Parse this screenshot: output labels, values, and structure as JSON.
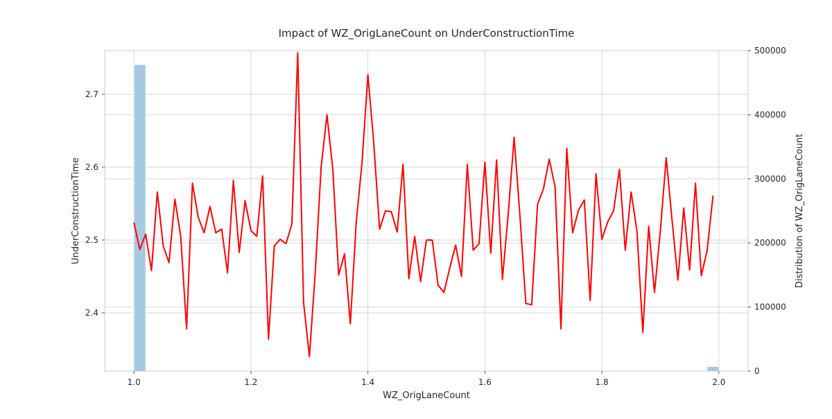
{
  "chart_data": {
    "type": "line",
    "title": "Impact of WZ_OrigLaneCount on UnderConstructionTime",
    "xlabel": "WZ_OrigLaneCount",
    "ylabel": "UnderConstructionTime",
    "y2label": "Distribution of WZ_OrigLaneCount",
    "xlim": [
      0.95,
      2.05
    ],
    "ylim": [
      2.32,
      2.76
    ],
    "y2lim": [
      0,
      500000
    ],
    "xticks": [
      1.0,
      1.2,
      1.4,
      1.6,
      1.8,
      2.0
    ],
    "xtick_labels": [
      "1.0",
      "1.2",
      "1.4",
      "1.6",
      "1.8",
      "2.0"
    ],
    "yticks": [
      2.4,
      2.5,
      2.6,
      2.7
    ],
    "ytick_labels": [
      "2.4",
      "2.5",
      "2.6",
      "2.7"
    ],
    "y2ticks": [
      0,
      100000,
      200000,
      300000,
      400000,
      500000
    ],
    "y2tick_labels": [
      "0",
      "100000",
      "200000",
      "300000",
      "400000",
      "500000"
    ],
    "grid": true,
    "line_color": "#ff0000",
    "bar_color": "#a6c8e2",
    "line_series": {
      "x": [
        1.0,
        1.01,
        1.02,
        1.03,
        1.04,
        1.05,
        1.06,
        1.07,
        1.08,
        1.09,
        1.1,
        1.11,
        1.12,
        1.13,
        1.14,
        1.15,
        1.16,
        1.17,
        1.18,
        1.19,
        1.2,
        1.21,
        1.22,
        1.23,
        1.24,
        1.25,
        1.26,
        1.27,
        1.28,
        1.29,
        1.3,
        1.31,
        1.32,
        1.33,
        1.34,
        1.35,
        1.36,
        1.37,
        1.38,
        1.39,
        1.4,
        1.41,
        1.42,
        1.43,
        1.44,
        1.45,
        1.46,
        1.47,
        1.48,
        1.49,
        1.5,
        1.51,
        1.52,
        1.53,
        1.54,
        1.55,
        1.56,
        1.57,
        1.58,
        1.59,
        1.6,
        1.61,
        1.62,
        1.63,
        1.64,
        1.65,
        1.66,
        1.67,
        1.68,
        1.69,
        1.7,
        1.71,
        1.72,
        1.73,
        1.74,
        1.75,
        1.76,
        1.77,
        1.78,
        1.79,
        1.8,
        1.81,
        1.82,
        1.83,
        1.84,
        1.85,
        1.86,
        1.87,
        1.88,
        1.89,
        1.9,
        1.91,
        1.92,
        1.93,
        1.94,
        1.95,
        1.96,
        1.97,
        1.98,
        1.99
      ],
      "y": [
        2.524,
        2.487,
        2.508,
        2.458,
        2.566,
        2.492,
        2.469,
        2.556,
        2.505,
        2.378,
        2.578,
        2.531,
        2.51,
        2.546,
        2.51,
        2.515,
        2.455,
        2.582,
        2.483,
        2.554,
        2.513,
        2.505,
        2.588,
        2.364,
        2.492,
        2.501,
        2.495,
        2.522,
        2.757,
        2.414,
        2.34,
        2.456,
        2.6,
        2.672,
        2.597,
        2.452,
        2.481,
        2.385,
        2.524,
        2.607,
        2.727,
        2.633,
        2.515,
        2.54,
        2.539,
        2.511,
        2.604,
        2.447,
        2.505,
        2.443,
        2.5,
        2.5,
        2.438,
        2.428,
        2.462,
        2.493,
        2.45,
        2.604,
        2.486,
        2.495,
        2.607,
        2.482,
        2.61,
        2.446,
        2.537,
        2.641,
        2.532,
        2.413,
        2.411,
        2.549,
        2.57,
        2.611,
        2.573,
        2.378,
        2.626,
        2.51,
        2.541,
        2.555,
        2.417,
        2.591,
        2.501,
        2.525,
        2.54,
        2.597,
        2.486,
        2.566,
        2.512,
        2.373,
        2.519,
        2.428,
        2.513,
        2.613,
        2.527,
        2.445,
        2.544,
        2.459,
        2.578,
        2.451,
        2.486,
        2.561
      ]
    },
    "histogram": {
      "bins": [
        {
          "x0": 1.0,
          "x1": 1.02,
          "count": 478000
        },
        {
          "x0": 1.98,
          "x1": 2.0,
          "count": 7000
        }
      ]
    }
  }
}
